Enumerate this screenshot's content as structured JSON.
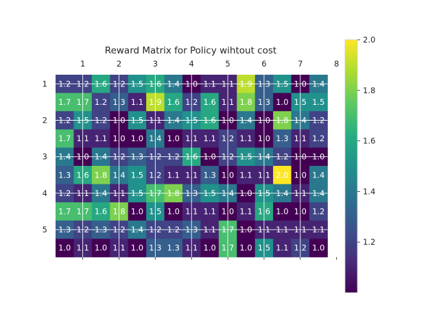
{
  "chart_data": {
    "type": "heatmap",
    "title": "Reward Matrix for Policy wihtout cost",
    "xlabel": "",
    "ylabel": "",
    "x_ticks": [
      "1",
      "2",
      "3",
      "4",
      "5",
      "6",
      "7",
      "8"
    ],
    "x_tick_columns": [
      1.5,
      3.5,
      5.5,
      7.5,
      9.5,
      11.5,
      13.5,
      15.5
    ],
    "y_ticks": [
      "1",
      "2",
      "3",
      "4",
      "5"
    ],
    "y_tick_rows": [
      0.5,
      2.5,
      4.5,
      6.5,
      8.5
    ],
    "grid": true,
    "colormap": "viridis",
    "colorbar": {
      "min": 1.0,
      "max": 2.0,
      "ticks": [
        "1.2",
        "1.4",
        "1.6",
        "1.8",
        "2.0"
      ]
    },
    "values": [
      [
        1.2,
        1.2,
        1.6,
        1.2,
        1.5,
        1.6,
        1.4,
        1.0,
        1.1,
        1.1,
        1.9,
        1.3,
        1.5,
        1.0,
        1.4
      ],
      [
        1.7,
        1.7,
        1.2,
        1.3,
        1.1,
        1.9,
        1.6,
        1.2,
        1.6,
        1.1,
        1.8,
        1.3,
        1.0,
        1.5,
        1.5
      ],
      [
        1.2,
        1.5,
        1.2,
        1.0,
        1.5,
        1.1,
        1.4,
        1.5,
        1.6,
        1.0,
        1.4,
        1.0,
        1.8,
        1.4,
        1.2
      ],
      [
        1.7,
        1.1,
        1.1,
        1.0,
        1.0,
        1.4,
        1.0,
        1.1,
        1.1,
        1.2,
        1.1,
        1.0,
        1.3,
        1.1,
        1.2
      ],
      [
        1.4,
        1.0,
        1.4,
        1.2,
        1.3,
        1.2,
        1.2,
        1.6,
        1.0,
        1.2,
        1.5,
        1.4,
        1.2,
        1.0,
        1.0
      ],
      [
        1.3,
        1.6,
        1.8,
        1.4,
        1.5,
        1.2,
        1.1,
        1.1,
        1.3,
        1.0,
        1.1,
        1.1,
        2.0,
        1.0,
        1.4
      ],
      [
        1.2,
        1.1,
        1.4,
        1.1,
        1.5,
        1.7,
        1.8,
        1.3,
        1.5,
        1.4,
        1.0,
        1.5,
        1.4,
        1.1,
        1.4
      ],
      [
        1.7,
        1.7,
        1.6,
        1.8,
        1.0,
        1.5,
        1.0,
        1.1,
        1.1,
        1.0,
        1.1,
        1.6,
        1.0,
        1.0,
        1.2
      ],
      [
        1.3,
        1.2,
        1.3,
        1.2,
        1.4,
        1.2,
        1.2,
        1.3,
        1.1,
        1.7,
        1.0,
        1.1,
        1.1,
        1.1,
        1.1
      ],
      [
        1.0,
        1.1,
        1.0,
        1.1,
        1.0,
        1.3,
        1.3,
        1.1,
        1.0,
        1.7,
        1.0,
        1.5,
        1.1,
        1.2,
        1.0
      ]
    ]
  }
}
